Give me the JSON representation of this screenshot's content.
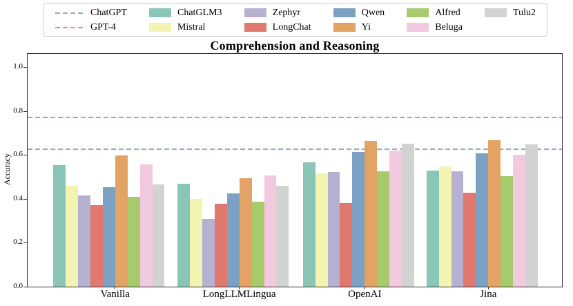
{
  "figure": {
    "title": "Comprehension and Reasoning",
    "ylabel": "Accuracy"
  },
  "legend": {
    "items": [
      {
        "label": "ChatGPT",
        "swatch": "line",
        "color": "#8babcb"
      },
      {
        "label": "GPT-4",
        "swatch": "line",
        "color": "#f1897f"
      },
      {
        "label": "ChatGLM3",
        "swatch": "patch",
        "color": "#8ac6b7"
      },
      {
        "label": "Mistral",
        "swatch": "patch",
        "color": "#f4f4b2"
      },
      {
        "label": "Zephyr",
        "swatch": "patch",
        "color": "#b7b1d1"
      },
      {
        "label": "LongChat",
        "swatch": "patch",
        "color": "#e1786e"
      },
      {
        "label": "Qwen",
        "swatch": "patch",
        "color": "#7ca1c5"
      },
      {
        "label": "Yi",
        "swatch": "patch",
        "color": "#e3a365"
      },
      {
        "label": "Alfred",
        "swatch": "patch",
        "color": "#a6ca6c"
      },
      {
        "label": "Beluga",
        "swatch": "patch",
        "color": "#f3c9e0"
      },
      {
        "label": "Tulu2",
        "swatch": "patch",
        "color": "#d2d2d2"
      }
    ]
  },
  "chart_data": {
    "type": "bar",
    "title": "Comprehension and Reasoning",
    "xlabel": "",
    "ylabel": "Accuracy",
    "categories": [
      "Vanilla",
      "LongLLMLingua",
      "OpenAI",
      "Jina"
    ],
    "series": [
      {
        "name": "ChatGLM3",
        "color": "#8ac6b7",
        "values": [
          0.555,
          0.47,
          0.565,
          0.528
        ]
      },
      {
        "name": "Mistral",
        "color": "#f4f4b2",
        "values": [
          0.46,
          0.398,
          0.515,
          0.548
        ]
      },
      {
        "name": "Zephyr",
        "color": "#b7b1d1",
        "values": [
          0.414,
          0.307,
          0.523,
          0.525
        ]
      },
      {
        "name": "LongChat",
        "color": "#e1786e",
        "values": [
          0.372,
          0.377,
          0.38,
          0.427
        ]
      },
      {
        "name": "Qwen",
        "color": "#7ca1c5",
        "values": [
          0.453,
          0.425,
          0.613,
          0.606
        ]
      },
      {
        "name": "Yi",
        "color": "#e3a365",
        "values": [
          0.598,
          0.495,
          0.663,
          0.666
        ]
      },
      {
        "name": "Alfred",
        "color": "#a6ca6c",
        "values": [
          0.409,
          0.388,
          0.524,
          0.504
        ]
      },
      {
        "name": "Beluga",
        "color": "#f3c9e0",
        "values": [
          0.556,
          0.505,
          0.619,
          0.6
        ]
      },
      {
        "name": "Tulu2",
        "color": "#d2d2d2",
        "values": [
          0.465,
          0.458,
          0.65,
          0.649
        ]
      }
    ],
    "baselines": [
      {
        "name": "ChatGPT",
        "value": 0.625,
        "color": "#8babcb",
        "style": "dashed"
      },
      {
        "name": "GPT-4",
        "value": 0.772,
        "color": "#f1897f",
        "style": "dashed"
      }
    ],
    "yticks": [
      0.0,
      0.2,
      0.4,
      0.6,
      0.8,
      1.0
    ],
    "ylim": [
      0,
      1.06
    ],
    "grid": false,
    "legend_position": "top"
  }
}
